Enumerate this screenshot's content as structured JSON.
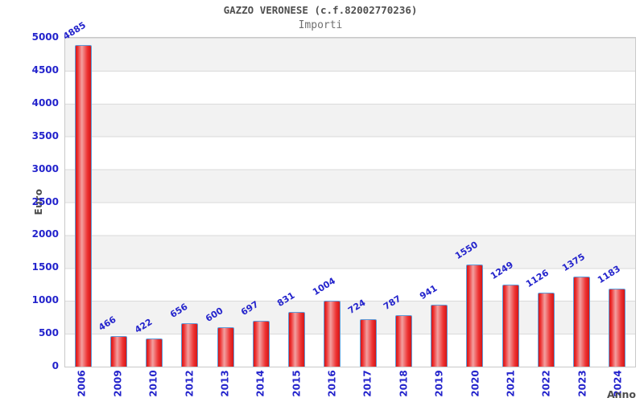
{
  "chart_data": {
    "type": "bar",
    "title": "GAZZO VERONESE (c.f.82002770236)",
    "subtitle": "Importi",
    "xlabel": "Anno",
    "ylabel": "Euro",
    "categories": [
      "2006",
      "2009",
      "2010",
      "2012",
      "2013",
      "2014",
      "2015",
      "2016",
      "2017",
      "2018",
      "2019",
      "2020",
      "2021",
      "2022",
      "2023",
      "2024"
    ],
    "values": [
      4885,
      466,
      422,
      656,
      600,
      697,
      831,
      1004,
      724,
      787,
      941,
      1550,
      1249,
      1126,
      1375,
      1183
    ],
    "ylim": [
      0,
      5000
    ],
    "ytick_step": 500,
    "legend": "none",
    "grid": "horizontal-bands-every-500",
    "colors": {
      "label_blue": "#2424cc",
      "axis_text_dark": "#4d4d4d",
      "title_gray": "#4f4f4f",
      "subtitle_gray": "#707070",
      "bar_edge": "#d41616",
      "bar_mid": "#f2a0a0",
      "bar_border": "#5e9bd8",
      "band_gray": "#f2f2f2",
      "band_white": "#ffffff",
      "grid_line": "#dadada",
      "plot_border": "#c9c9c9"
    }
  }
}
